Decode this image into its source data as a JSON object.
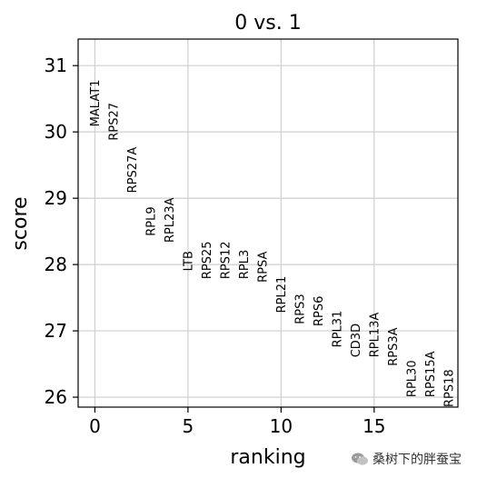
{
  "chart_data": {
    "type": "scatter",
    "title": "0 vs. 1",
    "xlabel": "ranking",
    "ylabel": "score",
    "xlim": [
      -0.9,
      19.5
    ],
    "ylim": [
      25.85,
      31.4
    ],
    "xticks": [
      0,
      5,
      10,
      15
    ],
    "yticks": [
      26,
      27,
      28,
      29,
      30,
      31
    ],
    "grid": true,
    "points": [
      {
        "x": 0,
        "y": 30.08,
        "label": "MALAT1"
      },
      {
        "x": 1,
        "y": 29.87,
        "label": "RPS27"
      },
      {
        "x": 2,
        "y": 29.08,
        "label": "RPS27A"
      },
      {
        "x": 3,
        "y": 28.43,
        "label": "RPL9"
      },
      {
        "x": 4,
        "y": 28.33,
        "label": "RPL23A"
      },
      {
        "x": 5,
        "y": 27.9,
        "label": "LTB"
      },
      {
        "x": 6,
        "y": 27.78,
        "label": "RPS25"
      },
      {
        "x": 7,
        "y": 27.78,
        "label": "RPS12"
      },
      {
        "x": 8,
        "y": 27.78,
        "label": "RPL3"
      },
      {
        "x": 9,
        "y": 27.73,
        "label": "RPSA"
      },
      {
        "x": 10,
        "y": 27.27,
        "label": "RPL21"
      },
      {
        "x": 11,
        "y": 27.1,
        "label": "RPS3"
      },
      {
        "x": 12,
        "y": 27.07,
        "label": "RPS6"
      },
      {
        "x": 13,
        "y": 26.75,
        "label": "RPL31"
      },
      {
        "x": 14,
        "y": 26.6,
        "label": "CD3D"
      },
      {
        "x": 15,
        "y": 26.6,
        "label": "RPL13A"
      },
      {
        "x": 16,
        "y": 26.47,
        "label": "RPS3A"
      },
      {
        "x": 17,
        "y": 26.0,
        "label": "RPL30"
      },
      {
        "x": 18,
        "y": 26.0,
        "label": "RPS15A"
      },
      {
        "x": 19,
        "y": 25.85,
        "label": "RPS18"
      }
    ]
  },
  "watermark": {
    "text": "桑树下的胖蚕宝",
    "icon": "wechat-icon"
  }
}
